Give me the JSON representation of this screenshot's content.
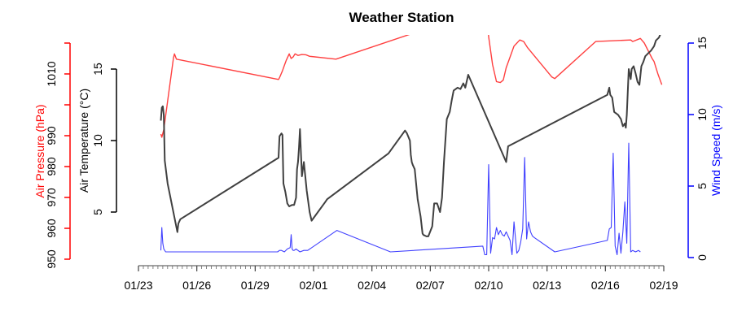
{
  "chart_data": {
    "type": "line",
    "title": "Weather Station",
    "xlabel": "",
    "x_axis": {
      "tick_labels": [
        "01/23",
        "01/26",
        "01/29",
        "02/01",
        "02/04",
        "02/07",
        "02/10",
        "02/13",
        "02/16",
        "02/19"
      ],
      "start_date": "01/23",
      "end_date": "02/19",
      "days_span": 27,
      "minor_ticks_per_day": 4
    },
    "axes": {
      "pressure": {
        "label": "Air Pressure (hPa)",
        "color": "#ff0000",
        "side": "left-outer",
        "ticks": [
          950,
          960,
          970,
          980,
          990,
          1000,
          1010,
          1020
        ],
        "tick_labels": [
          "950",
          "960",
          "970",
          "980",
          "990",
          "",
          "1010",
          ""
        ],
        "ylim": [
          950,
          1020
        ]
      },
      "temperature": {
        "label": "Air Temperature (°C)",
        "color": "#000000",
        "side": "left-inner",
        "ticks": [
          5,
          10,
          15
        ],
        "tick_labels": [
          "5",
          "10",
          "15"
        ],
        "ylim": [
          5,
          15
        ]
      },
      "wind": {
        "label": "Wind Speed (m/s)",
        "color": "#0000ff",
        "side": "right",
        "ticks": [
          0,
          5,
          10,
          15
        ],
        "tick_labels": [
          "0",
          "5",
          "10",
          "15"
        ],
        "ylim": [
          0,
          15
        ]
      }
    },
    "series": [
      {
        "name": "Air Pressure (hPa)",
        "axis": "pressure",
        "color": "#ff4040",
        "x_days": [
          1.15,
          1.2,
          1.3,
          1.8,
          1.85,
          1.95,
          7.2,
          7.25,
          7.4,
          7.5,
          7.6,
          7.75,
          7.85,
          7.95,
          8.05,
          8.2,
          8.4,
          8.6,
          8.8,
          10.15,
          14.5,
          17.8,
          17.9,
          18.0,
          18.2,
          18.4,
          18.6,
          18.75,
          18.9,
          19.1,
          19.3,
          19.6,
          19.8,
          20.0,
          21.25,
          21.4,
          23.5,
          25.3,
          25.4,
          25.8,
          26.0,
          26.2,
          26.4,
          26.5,
          26.7,
          26.9
        ],
        "values": [
          990.5,
          989.5,
          992,
          1015.2,
          1016.5,
          1014.8,
          1008.2,
          1008.8,
          1011,
          1012.8,
          1014.5,
          1016.5,
          1015,
          1015.5,
          1016.5,
          1016,
          1016.3,
          1016.2,
          1015.7,
          1014.8,
          1024,
          1028,
          1030,
          1022,
          1013,
          1007.5,
          1007.2,
          1008,
          1012,
          1015.5,
          1019,
          1021,
          1020.5,
          1018.5,
          1009,
          1008.5,
          1020.5,
          1021,
          1020.5,
          1021.5,
          1020,
          1017.5,
          1015,
          1014,
          1010,
          1006.5
        ]
      },
      {
        "name": "Air Temperature (°C)",
        "axis": "temperature",
        "color": "#404040",
        "x_days": [
          1.15,
          1.2,
          1.25,
          1.3,
          1.35,
          1.5,
          2.0,
          2.05,
          2.15,
          7.2,
          7.25,
          7.35,
          7.4,
          7.45,
          7.55,
          7.65,
          7.75,
          7.9,
          8.0,
          8.1,
          8.15,
          8.2,
          8.25,
          8.3,
          8.4,
          8.5,
          8.65,
          8.8,
          8.9,
          9.6,
          9.7,
          12.85,
          13.7,
          13.8,
          13.95,
          14.0,
          14.05,
          14.1,
          14.2,
          14.35,
          14.5,
          14.6,
          14.65,
          14.8,
          14.9,
          15.1,
          15.2,
          15.35,
          15.45,
          15.5,
          15.6,
          15.7,
          15.85,
          16.0,
          16.1,
          16.2,
          16.4,
          16.55,
          16.7,
          16.8,
          16.95,
          18.9,
          19.0,
          24.1,
          24.2,
          24.25,
          24.35,
          24.45,
          24.55,
          24.65,
          24.8,
          24.9,
          25.0,
          25.05,
          25.1,
          25.2,
          25.3,
          25.35,
          25.45,
          25.55,
          25.65,
          25.75,
          25.85,
          25.95,
          26.05,
          26.2,
          26.35,
          26.5,
          26.6,
          26.75,
          26.85
        ],
        "values": [
          11.4,
          12.3,
          12.4,
          11.8,
          8.6,
          7.0,
          3.6,
          4.2,
          4.5,
          8.8,
          10.3,
          10.5,
          10.4,
          7.0,
          6.4,
          5.6,
          5.4,
          5.5,
          5.5,
          6.0,
          8.0,
          8.5,
          9.5,
          10.8,
          7.5,
          8.5,
          6.5,
          5.0,
          4.4,
          5.7,
          5.9,
          9.1,
          10.7,
          10.5,
          10.0,
          9.0,
          8.5,
          8.3,
          8.0,
          5.9,
          4.7,
          3.5,
          3.4,
          3.3,
          3.3,
          4.0,
          5.6,
          5.6,
          5.2,
          5.0,
          6.0,
          8.5,
          11.5,
          12.0,
          12.8,
          13.5,
          13.7,
          13.6,
          14.0,
          13.7,
          14.6,
          8.5,
          9.6,
          13.2,
          13.7,
          13.2,
          13.0,
          12.0,
          11.9,
          11.8,
          11.5,
          11.0,
          11.2,
          10.9,
          11.8,
          15.0,
          14.3,
          15.0,
          15.2,
          14.7,
          14.1,
          13.9,
          15.2,
          15.5,
          15.9,
          16.1,
          16.3,
          16.6,
          17.0,
          17.2,
          17.5
        ]
      },
      {
        "name": "Wind Speed (m/s)",
        "axis": "wind",
        "color": "#4040ff",
        "x_days": [
          1.15,
          1.2,
          1.25,
          1.3,
          1.4,
          1.5,
          2.0,
          2.1,
          7.15,
          7.25,
          7.35,
          7.5,
          7.65,
          7.8,
          7.85,
          7.9,
          7.95,
          8.0,
          8.1,
          8.3,
          8.5,
          8.7,
          10.2,
          12.95,
          17.7,
          17.8,
          17.9,
          18.0,
          18.1,
          18.2,
          18.3,
          18.4,
          18.5,
          18.6,
          18.7,
          18.8,
          18.9,
          19.0,
          19.1,
          19.2,
          19.3,
          19.45,
          19.55,
          19.65,
          19.75,
          19.85,
          19.95,
          20.05,
          20.15,
          20.25,
          20.35,
          21.4,
          24.1,
          24.2,
          24.3,
          24.4,
          24.5,
          24.6,
          24.7,
          24.8,
          24.9,
          25.0,
          25.1,
          25.2,
          25.3,
          25.4,
          25.55,
          25.7,
          25.8
        ],
        "values": [
          0.5,
          2.1,
          1.0,
          0.6,
          0.4,
          0.4,
          0.4,
          0.4,
          0.4,
          0.5,
          0.5,
          0.4,
          0.6,
          0.7,
          1.6,
          0.6,
          0.5,
          0.5,
          0.6,
          0.4,
          0.5,
          0.5,
          1.9,
          0.4,
          0.8,
          0.2,
          0.2,
          6.5,
          0.3,
          1.4,
          1.3,
          2.1,
          1.6,
          1.9,
          1.6,
          1.5,
          1.8,
          1.5,
          1.2,
          0.2,
          2.5,
          0.3,
          0.5,
          1.1,
          2.0,
          7.0,
          1.3,
          2.5,
          1.8,
          1.5,
          1.4,
          0.4,
          1.2,
          2.0,
          2.1,
          7.3,
          0.8,
          0.2,
          1.7,
          0.3,
          1.8,
          3.9,
          1.0,
          8.0,
          0.4,
          0.5,
          0.4,
          0.5,
          0.4
        ]
      }
    ],
    "legend": null,
    "grid": false
  }
}
